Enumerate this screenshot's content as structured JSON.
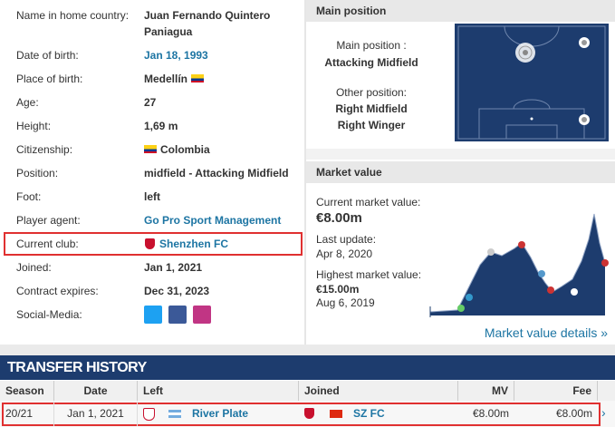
{
  "profile": {
    "rows": [
      {
        "label": "Name in home country:",
        "value": "Juan Fernando Quintero Paniagua"
      },
      {
        "label": "Date of birth:",
        "value": "Jan 18, 1993"
      },
      {
        "label": "Place of birth:",
        "value": "Medellín"
      },
      {
        "label": "Age:",
        "value": "27"
      },
      {
        "label": "Height:",
        "value": "1,69 m"
      },
      {
        "label": "Citizenship:",
        "value": "Colombia"
      },
      {
        "label": "Position:",
        "value": "midfield - Attacking Midfield"
      },
      {
        "label": "Foot:",
        "value": "left"
      },
      {
        "label": "Player agent:",
        "value": "Go Pro Sport Management"
      },
      {
        "label": "Current club:",
        "value": "Shenzhen FC"
      },
      {
        "label": "Joined:",
        "value": "Jan 1, 2021"
      },
      {
        "label": "Contract expires:",
        "value": "Dec 31, 2023"
      },
      {
        "label": "Social-Media:"
      }
    ]
  },
  "main_position": {
    "title": "Main position",
    "main_label": "Main position :",
    "main": "Attacking Midfield",
    "other_label": "Other position:",
    "other": [
      "Right Midfield",
      "Right Winger"
    ]
  },
  "market_value": {
    "title": "Market value",
    "current_label": "Current market value:",
    "current": "€8.00m",
    "update_label": "Last update:",
    "update": "Apr 8, 2020",
    "highest_label": "Highest market value:",
    "highest": "€15.00m",
    "highest_date": "Aug 6, 2019",
    "details_link": "Market value details »"
  },
  "transfer_history": {
    "title": "TRANSFER HISTORY",
    "columns": [
      "Season",
      "Date",
      "Left",
      "Joined",
      "MV",
      "Fee"
    ],
    "rows": [
      [
        "20/21",
        "Jan 1, 2021",
        "River Plate",
        "SZ FC",
        "€8.00m",
        "€8.00m"
      ]
    ]
  }
}
